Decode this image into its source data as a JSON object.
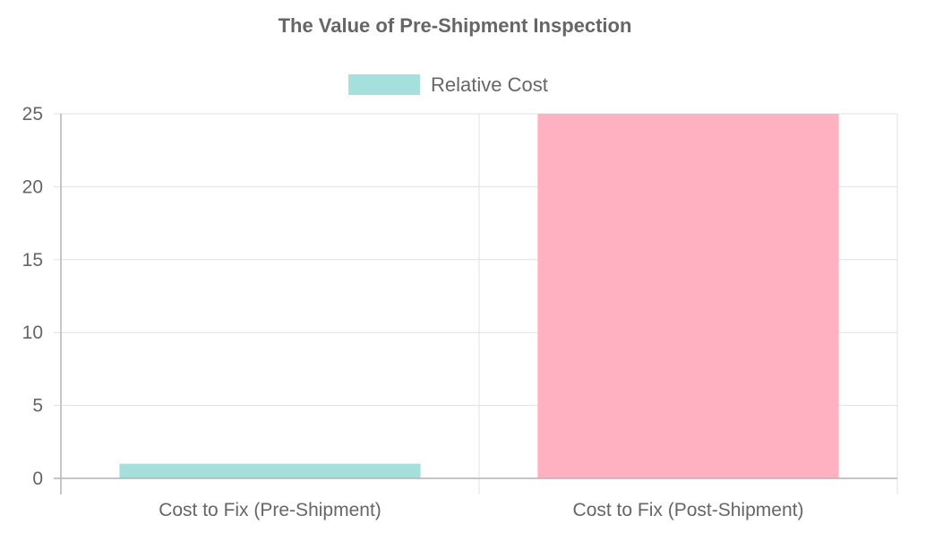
{
  "chart_data": {
    "type": "bar",
    "title": "The Value of Pre-Shipment Inspection",
    "categories": [
      "Cost to Fix (Pre-Shipment)",
      "Cost to Fix (Post-Shipment)"
    ],
    "series": [
      {
        "name": "Relative Cost",
        "values": [
          1,
          25
        ],
        "colors": [
          "#a6e0dc",
          "#ffb0c1"
        ]
      }
    ],
    "legend_color": "#a6e0dc",
    "legend_position": "top",
    "ylim": [
      0,
      25
    ],
    "yticks": [
      0,
      5,
      10,
      15,
      20,
      25
    ],
    "grid": true,
    "xlabel": "",
    "ylabel": ""
  }
}
